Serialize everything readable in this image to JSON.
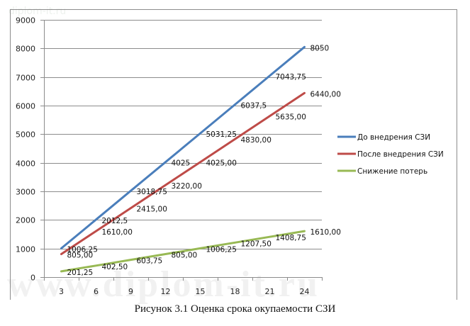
{
  "watermark": {
    "top": "diplom-it.ru",
    "bottom": "www.diplom-it.ru"
  },
  "caption": "Рисунок 3.1 Оценка срока окупаемости СЗИ",
  "chart_data": {
    "type": "line",
    "title": "",
    "xlabel": "",
    "ylabel": "",
    "x": [
      3,
      6,
      9,
      12,
      15,
      18,
      21,
      24
    ],
    "categories": [
      "3",
      "6",
      "9",
      "12",
      "15",
      "18",
      "21",
      "24"
    ],
    "ylim": [
      0,
      9000
    ],
    "yticks": [
      "0",
      "1000",
      "2000",
      "3000",
      "4000",
      "5000",
      "6000",
      "7000",
      "8000",
      "9000"
    ],
    "grid": true,
    "legend_position": "right",
    "series": [
      {
        "name": "До внедрения СЗИ",
        "color": "#4a7ebb",
        "values": [
          1006.25,
          2012.5,
          3018.75,
          4025,
          5031.25,
          6037.5,
          7043.75,
          8050
        ],
        "labels": [
          "1006,25",
          "2012,5",
          "3018,75",
          "4025",
          "5031,25",
          "6037,5",
          "7043,75",
          "8050"
        ]
      },
      {
        "name": "После внедрения СЗИ",
        "color": "#be4b48",
        "values": [
          805,
          1610,
          2415,
          3220,
          4025,
          4830,
          5635,
          6440
        ],
        "labels": [
          "805,00",
          "1610,00",
          "2415,00",
          "3220,00",
          "4025,00",
          "4830,00",
          "5635,00",
          "6440,00"
        ]
      },
      {
        "name": "Снижение потерь",
        "color": "#98b954",
        "values": [
          201.25,
          402.5,
          603.75,
          805,
          1006.25,
          1207.5,
          1408.75,
          1610
        ],
        "labels": [
          "201,25",
          "402,50",
          "603,75",
          "805,00",
          "1006,25",
          "1207,50",
          "1408,75",
          "1610,00"
        ]
      }
    ]
  }
}
